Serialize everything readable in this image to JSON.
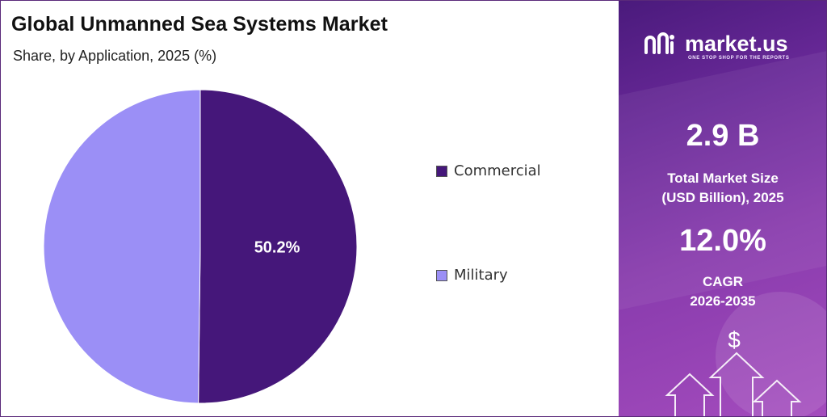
{
  "header": {
    "title": "Global Unmanned Sea Systems Market",
    "subtitle": "Share, by Application, 2025 (%)"
  },
  "chart_data": {
    "type": "pie",
    "title": "Global Unmanned Sea Systems Market",
    "subtitle": "Share, by Application, 2025 (%)",
    "categories": [
      "Commercial",
      "Military"
    ],
    "values": [
      50.2,
      49.8
    ],
    "data_labels": [
      "50.2%",
      ""
    ],
    "colors": [
      "#45177a",
      "#9b8ff6"
    ],
    "legend_position": "right"
  },
  "sidebar": {
    "logo_text": "market.us",
    "tagline": "ONE STOP SHOP FOR THE REPORTS",
    "market_size_value": "2.9 B",
    "market_size_label_1": "Total Market Size",
    "market_size_label_2": "(USD Billion), 2025",
    "cagr_value": "12.0%",
    "cagr_label_1": "CAGR",
    "cagr_label_2": "2026-2035",
    "dollar_symbol": "$"
  }
}
